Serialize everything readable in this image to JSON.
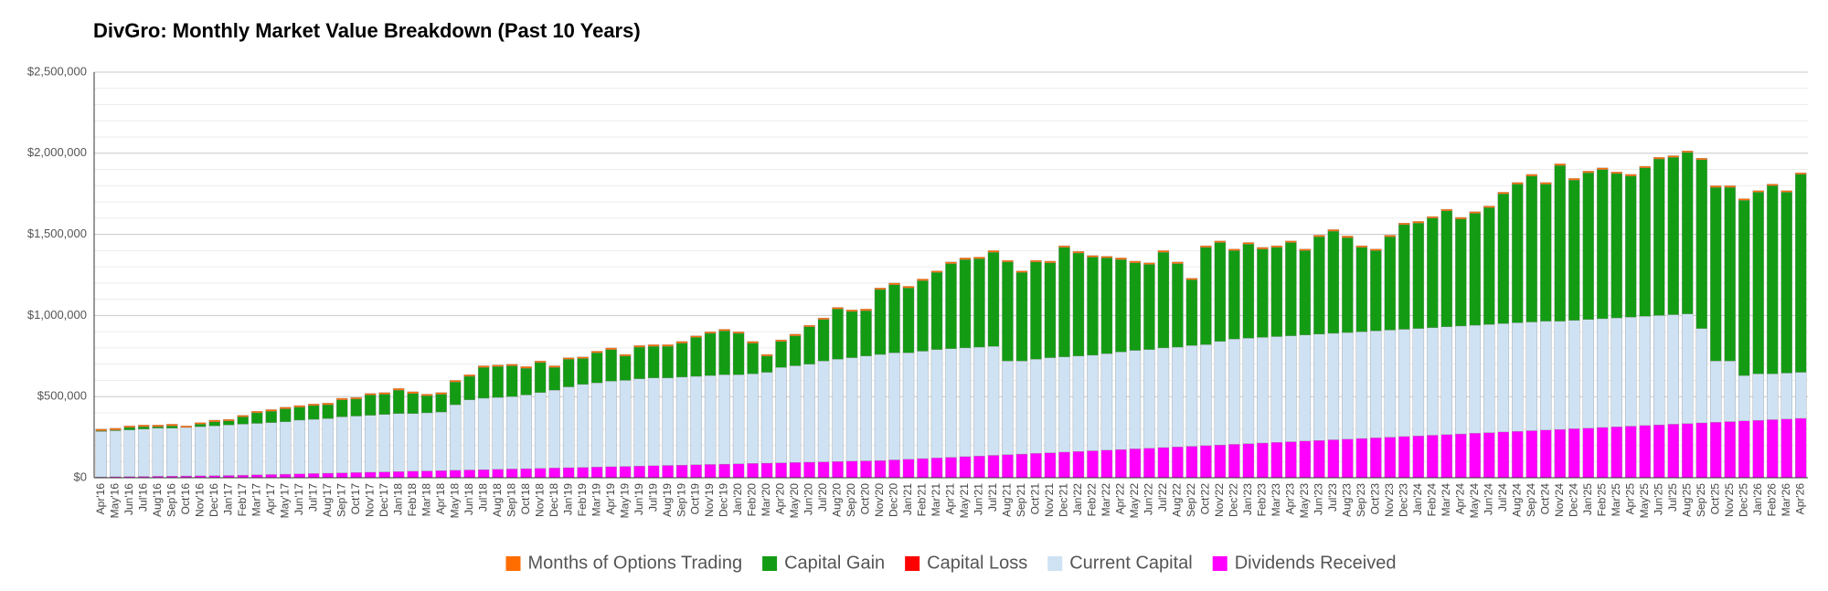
{
  "chart_data": {
    "type": "stacked_bar",
    "title": "DivGro: Monthly Market Value Breakdown (Past 10 Years)",
    "categories": [
      "Apr'16",
      "May'16",
      "Jun'16",
      "Jul'16",
      "Aug'16",
      "Sep'16",
      "Oct'16",
      "Nov'16",
      "Dec'16",
      "Jan'17",
      "Feb'17",
      "Mar'17",
      "Apr'17",
      "May'17",
      "Jun'17",
      "Jul'17",
      "Aug'17",
      "Sep'17",
      "Oct'17",
      "Nov'17",
      "Dec'17",
      "Jan'18",
      "Feb'18",
      "Mar'18",
      "Apr'18",
      "May'18",
      "Jun'18",
      "Jul'18",
      "Aug'18",
      "Sep'18",
      "Oct'18",
      "Nov'18",
      "Dec'18",
      "Jan'19",
      "Feb'19",
      "Mar'19",
      "Apr'19",
      "May'19",
      "Jun'19",
      "Jul'19",
      "Aug'19",
      "Sep'19",
      "Oct'19",
      "Nov'19",
      "Dec'19",
      "Jan'20",
      "Feb'20",
      "Mar'20",
      "Apr'20",
      "May'20",
      "Jun'20",
      "Jul'20",
      "Aug'20",
      "Sep'20",
      "Oct'20",
      "Nov'20",
      "Dec'20",
      "Jan'21",
      "Feb'21",
      "Mar'21",
      "Apr'21",
      "May'21",
      "Jun'21",
      "Jul'21",
      "Aug'21",
      "Sep'21",
      "Oct'21",
      "Nov'21",
      "Dec'21",
      "Jan'22",
      "Feb'22",
      "Mar'22",
      "Apr'22",
      "May'22",
      "Jun'22",
      "Jul'22",
      "Aug'22",
      "Sep'22",
      "Oct'22",
      "Nov'22",
      "Dec'22",
      "Jan'23",
      "Feb'23",
      "Mar'23",
      "Apr'23",
      "May'23",
      "Jun'23",
      "Jul'23",
      "Aug'23",
      "Sep'23",
      "Oct'23",
      "Nov'23",
      "Dec'23",
      "Jan'24",
      "Feb'24",
      "Mar'24",
      "Apr'24",
      "May'24",
      "Jun'24",
      "Jul'24",
      "Aug'24",
      "Sep'24",
      "Oct'24",
      "Nov'24",
      "Dec'24",
      "Jan'25",
      "Feb'25",
      "Mar'25",
      "Apr'25",
      "May'25",
      "Jun'25",
      "Jul'25",
      "Aug'25",
      "Sep'25",
      "Oct'25",
      "Nov'25",
      "Dec'25",
      "Jan'26",
      "Feb'26",
      "Mar'26",
      "Apr'26"
    ],
    "series": [
      {
        "name": "Months of Options Trading",
        "color": "#ff6d01",
        "values": [
          10000,
          10000,
          10000,
          10000,
          10000,
          10000,
          10000,
          10000,
          10000,
          10000,
          10000,
          10000,
          10000,
          10000,
          10000,
          10000,
          10000,
          10000,
          10000,
          10000,
          10000,
          10000,
          10000,
          10000,
          10000,
          10000,
          10000,
          10000,
          10000,
          10000,
          10000,
          10000,
          10000,
          10000,
          10000,
          10000,
          10000,
          10000,
          10000,
          10000,
          10000,
          10000,
          10000,
          10000,
          10000,
          10000,
          10000,
          10000,
          10000,
          10000,
          10000,
          10000,
          10000,
          10000,
          10000,
          10000,
          10000,
          10000,
          10000,
          10000,
          10000,
          10000,
          10000,
          10000,
          10000,
          10000,
          10000,
          10000,
          10000,
          10000,
          10000,
          10000,
          10000,
          10000,
          10000,
          10000,
          10000,
          10000,
          10000,
          10000,
          10000,
          10000,
          10000,
          10000,
          10000,
          10000,
          10000,
          10000,
          10000,
          10000,
          10000,
          10000,
          10000,
          10000,
          10000,
          10000,
          10000,
          10000,
          10000,
          10000,
          10000,
          10000,
          10000,
          10000,
          10000,
          10000,
          10000,
          10000,
          10000,
          10000,
          10000,
          10000,
          10000,
          10000,
          10000,
          10000,
          10000,
          10000,
          10000,
          10000,
          10000
        ]
      },
      {
        "name": "Capital Gain",
        "color": "#139c13",
        "values": [
          5000,
          5000,
          15000,
          15000,
          10000,
          15000,
          0,
          15000,
          25000,
          25000,
          45000,
          65000,
          70000,
          80000,
          80000,
          85000,
          85000,
          105000,
          105000,
          125000,
          125000,
          145000,
          125000,
          105000,
          110000,
          140000,
          145000,
          190000,
          190000,
          190000,
          165000,
          185000,
          140000,
          170000,
          160000,
          185000,
          195000,
          150000,
          195000,
          195000,
          195000,
          210000,
          240000,
          260000,
          270000,
          255000,
          190000,
          100000,
          160000,
          185000,
          230000,
          255000,
          310000,
          285000,
          280000,
          400000,
          420000,
          400000,
          435000,
          475000,
          525000,
          545000,
          545000,
          580000,
          610000,
          545000,
          600000,
          585000,
          675000,
          635000,
          605000,
          590000,
          570000,
          540000,
          525000,
          590000,
          515000,
          405000,
          600000,
          610000,
          545000,
          580000,
          545000,
          550000,
          575000,
          520000,
          600000,
          630000,
          585000,
          520000,
          495000,
          575000,
          645000,
          650000,
          675000,
          715000,
          660000,
          690000,
          720000,
          800000,
          855000,
          900000,
          845000,
          960000,
          865000,
          905000,
          920000,
          890000,
          870000,
          915000,
          965000,
          970000,
          995000,
          1040000,
          1070000,
          1070000,
          1080000,
          1120000,
          1160000,
          1115000,
          1220000
        ]
      },
      {
        "name": "Capital Loss",
        "color": "#ff0000",
        "values": [
          0,
          0,
          0,
          0,
          0,
          0,
          0,
          0,
          0,
          0,
          0,
          0,
          0,
          0,
          0,
          0,
          0,
          0,
          0,
          0,
          0,
          0,
          0,
          0,
          0,
          0,
          0,
          0,
          0,
          0,
          0,
          0,
          0,
          0,
          0,
          0,
          0,
          0,
          0,
          0,
          0,
          0,
          0,
          0,
          0,
          0,
          0,
          0,
          0,
          0,
          0,
          0,
          0,
          0,
          0,
          0,
          0,
          0,
          0,
          0,
          0,
          0,
          0,
          0,
          0,
          0,
          0,
          0,
          0,
          0,
          0,
          0,
          0,
          0,
          0,
          0,
          0,
          0,
          0,
          0,
          0,
          0,
          0,
          0,
          0,
          0,
          0,
          0,
          0,
          0,
          0,
          0,
          0,
          0,
          0,
          0,
          0,
          0,
          0,
          0,
          0,
          0,
          0,
          0,
          0,
          0,
          0,
          0,
          0,
          0,
          0,
          0,
          0,
          0,
          0,
          0,
          0,
          0,
          0,
          0,
          0
        ]
      },
      {
        "name": "Current Capital",
        "color": "#cfe2f3",
        "values": [
          280000,
          284000,
          288000,
          292000,
          296000,
          295000,
          299000,
          303000,
          307000,
          311000,
          314000,
          317000,
          320000,
          323000,
          331000,
          334000,
          337000,
          345000,
          348000,
          351000,
          354000,
          357000,
          355000,
          358000,
          361000,
          404000,
          432000,
          440000,
          443000,
          446000,
          454000,
          467000,
          480000,
          498000,
          511000,
          519000,
          527000,
          530000,
          538000,
          541000,
          539000,
          542000,
          545000,
          548000,
          551000,
          549000,
          552000,
          560000,
          588000,
          596000,
          604000,
          622000,
          630000,
          638000,
          646000,
          654000,
          660000,
          656000,
          662000,
          668000,
          669000,
          670000,
          671000,
          672000,
          578000,
          574000,
          580000,
          586000,
          587000,
          588000,
          589000,
          595000,
          601000,
          607000,
          608000,
          614000,
          615000,
          621000,
          622000,
          638000,
          649000,
          650000,
          651000,
          652000,
          653000,
          654000,
          655000,
          656000,
          657000,
          658000,
          659000,
          660000,
          661000,
          662000,
          663000,
          664000,
          665000,
          666000,
          667000,
          668000,
          669000,
          670000,
          671000,
          667000,
          668000,
          669000,
          670000,
          671000,
          672000,
          673000,
          674000,
          675000,
          676000,
          582000,
          378000,
          374000,
          280000,
          286000,
          282000,
          283000,
          284000
        ]
      },
      {
        "name": "Dividends Received",
        "color": "#ff00ff",
        "values": [
          5000,
          6000,
          7000,
          8000,
          9000,
          10000,
          11000,
          12000,
          13000,
          14000,
          16000,
          18000,
          20000,
          22000,
          24000,
          26000,
          28000,
          30000,
          32000,
          34000,
          36000,
          38000,
          40000,
          42000,
          44000,
          46000,
          48000,
          50000,
          52000,
          54000,
          56000,
          58000,
          60000,
          62000,
          64000,
          66000,
          68000,
          70000,
          72000,
          74000,
          76000,
          78000,
          80000,
          82000,
          84000,
          86000,
          88000,
          90000,
          92000,
          94000,
          96000,
          98000,
          100000,
          102000,
          104000,
          106000,
          110000,
          114000,
          118000,
          122000,
          126000,
          130000,
          134000,
          138000,
          142000,
          146000,
          150000,
          154000,
          158000,
          162000,
          166000,
          170000,
          174000,
          178000,
          182000,
          186000,
          190000,
          194000,
          198000,
          202000,
          206000,
          210000,
          214000,
          218000,
          222000,
          226000,
          230000,
          234000,
          238000,
          242000,
          246000,
          250000,
          254000,
          258000,
          262000,
          266000,
          270000,
          274000,
          278000,
          282000,
          286000,
          290000,
          294000,
          298000,
          302000,
          306000,
          310000,
          314000,
          318000,
          322000,
          326000,
          330000,
          334000,
          338000,
          342000,
          346000,
          350000,
          354000,
          358000,
          362000,
          366000
        ]
      }
    ],
    "ylim": [
      0,
      2500000
    ],
    "yticks": [
      {
        "value": 0,
        "label": "$0"
      },
      {
        "value": 500000,
        "label": "$500,000"
      },
      {
        "value": 1000000,
        "label": "$1,000,000"
      },
      {
        "value": 1500000,
        "label": "$1,500,000"
      },
      {
        "value": 2000000,
        "label": "$2,000,000"
      },
      {
        "value": 2500000,
        "label": "$2,500,000"
      }
    ],
    "grid": true,
    "minor_grid": true,
    "legend": "bottom"
  }
}
